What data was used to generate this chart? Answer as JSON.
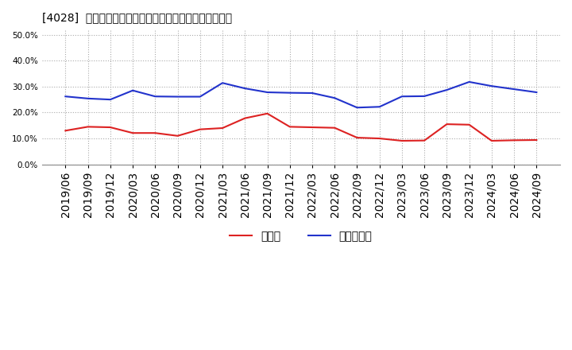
{
  "title": "[4028]  現預金、有利子負債の総資産に対する比率の推移",
  "x_labels": [
    "2019/06",
    "2019/09",
    "2019/12",
    "2020/03",
    "2020/06",
    "2020/09",
    "2020/12",
    "2021/03",
    "2021/06",
    "2021/09",
    "2021/12",
    "2022/03",
    "2022/06",
    "2022/09",
    "2022/12",
    "2023/03",
    "2023/06",
    "2023/09",
    "2023/12",
    "2024/03",
    "2024/06",
    "2024/09"
  ],
  "cash": [
    0.13,
    0.145,
    0.143,
    0.121,
    0.121,
    0.11,
    0.135,
    0.14,
    0.178,
    0.196,
    0.145,
    0.143,
    0.141,
    0.103,
    0.1,
    0.091,
    0.092,
    0.155,
    0.153,
    0.091,
    0.093,
    0.094
  ],
  "debt": [
    0.262,
    0.254,
    0.25,
    0.285,
    0.262,
    0.261,
    0.261,
    0.314,
    0.293,
    0.278,
    0.276,
    0.275,
    0.256,
    0.219,
    0.222,
    0.262,
    0.263,
    0.287,
    0.318,
    0.302,
    0.29,
    0.278
  ],
  "cash_color": "#dd2222",
  "debt_color": "#2233cc",
  "legend_cash": "現預金",
  "legend_debt": "有利子負債",
  "ylim": [
    0.0,
    0.52
  ],
  "yticks": [
    0.0,
    0.1,
    0.2,
    0.3,
    0.4,
    0.5
  ],
  "background_color": "#ffffff",
  "grid_color": "#aaaaaa",
  "title_fontsize": 11,
  "axis_fontsize": 7.5,
  "legend_fontsize": 9
}
